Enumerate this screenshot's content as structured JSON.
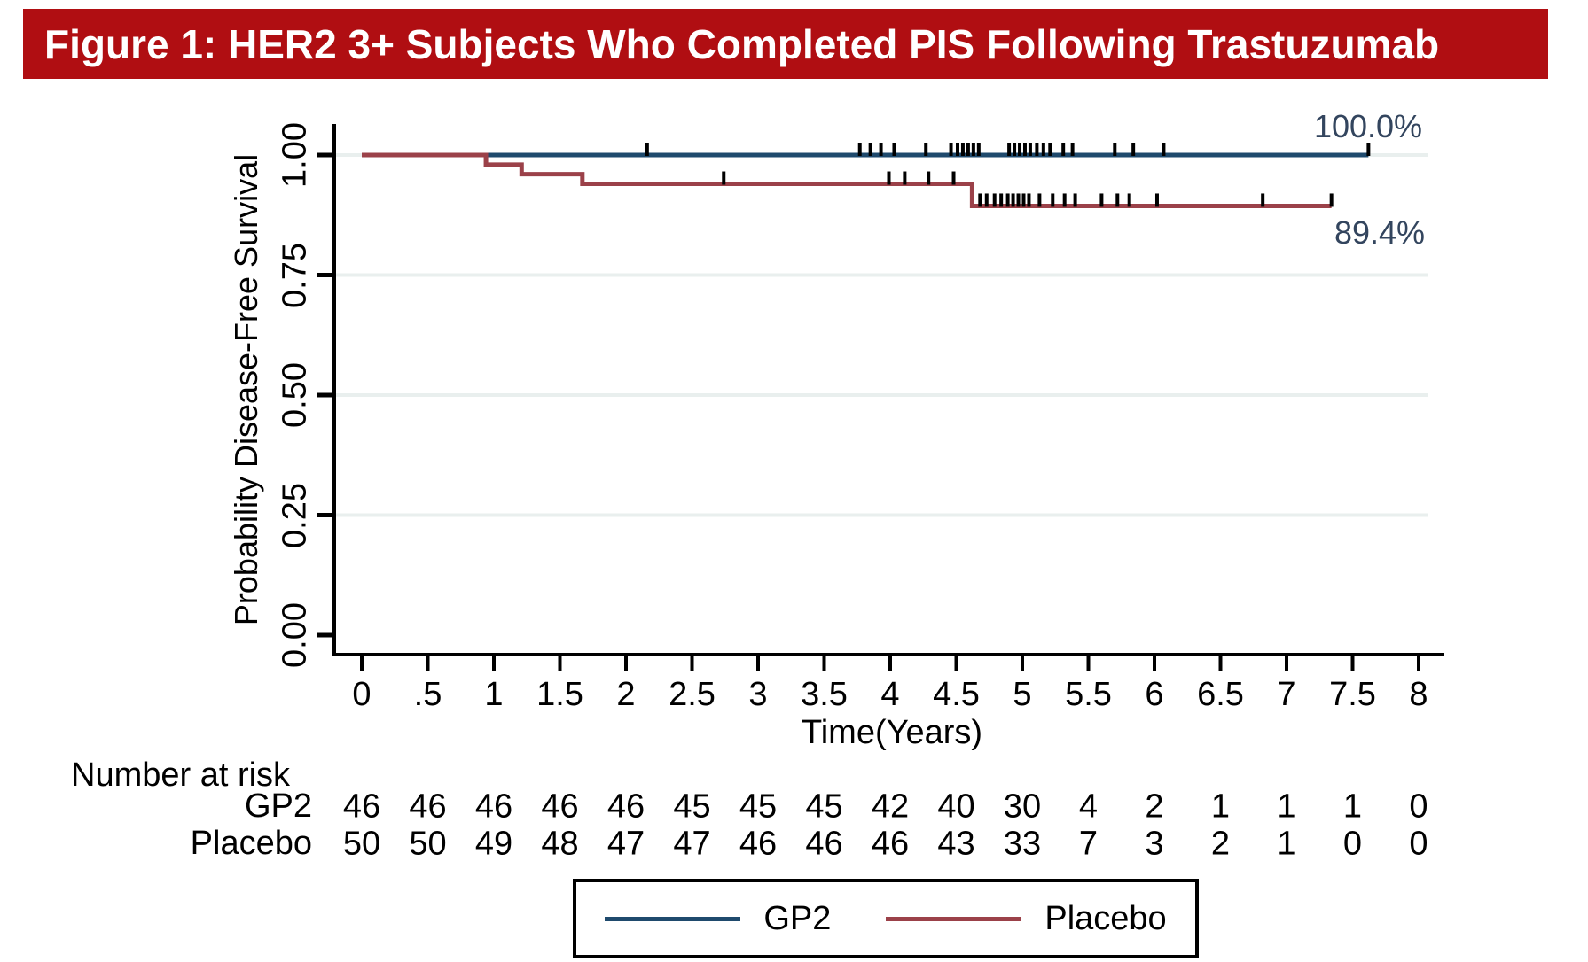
{
  "title_bar": {
    "text": "Figure 1: HER2 3+ Subjects Who Completed PIS Following Trastuzumab",
    "bg_color": "#b00e12",
    "text_color": "#ffffff"
  },
  "chart_data": {
    "type": "line",
    "subtype": "kaplan_meier_step_survival",
    "title": "",
    "xlabel": "Time(Years)",
    "ylabel": "Probability Disease-Free Survival",
    "xlim": [
      0,
      8
    ],
    "ylim": [
      0,
      1
    ],
    "grid": true,
    "grid_values": [
      0.25,
      0.5,
      0.75,
      1.0
    ],
    "grid_color": "#e9efee",
    "axis_color": "#000000",
    "annotation_color": "#33455e",
    "x_ticks": [
      {
        "value": 0,
        "label": "0"
      },
      {
        "value": 0.5,
        "label": ".5"
      },
      {
        "value": 1,
        "label": "1"
      },
      {
        "value": 1.5,
        "label": "1.5"
      },
      {
        "value": 2,
        "label": "2"
      },
      {
        "value": 2.5,
        "label": "2.5"
      },
      {
        "value": 3,
        "label": "3"
      },
      {
        "value": 3.5,
        "label": "3.5"
      },
      {
        "value": 4,
        "label": "4"
      },
      {
        "value": 4.5,
        "label": "4.5"
      },
      {
        "value": 5,
        "label": "5"
      },
      {
        "value": 5.5,
        "label": "5.5"
      },
      {
        "value": 6,
        "label": "6"
      },
      {
        "value": 6.5,
        "label": "6.5"
      },
      {
        "value": 7,
        "label": "7"
      },
      {
        "value": 7.5,
        "label": "7.5"
      },
      {
        "value": 8,
        "label": "8"
      }
    ],
    "y_ticks": [
      {
        "value": 0,
        "label": "0.00"
      },
      {
        "value": 0.25,
        "label": "0.25"
      },
      {
        "value": 0.5,
        "label": "0.50"
      },
      {
        "value": 0.75,
        "label": "0.75"
      },
      {
        "value": 1,
        "label": "1.00"
      }
    ],
    "series": [
      {
        "name": "GP2",
        "color": "#1f4a6d",
        "annotation": "100.0%",
        "final_value": 1.0,
        "points": [
          [
            0,
            1.0
          ],
          [
            7.62,
            1.0
          ]
        ],
        "censor_marks": [
          [
            2.16,
            1.0
          ],
          [
            3.77,
            1.0
          ],
          [
            3.85,
            1.0
          ],
          [
            3.93,
            1.0
          ],
          [
            4.03,
            1.0
          ],
          [
            4.27,
            1.0
          ],
          [
            4.46,
            1.0
          ],
          [
            4.51,
            1.0
          ],
          [
            4.55,
            1.0
          ],
          [
            4.59,
            1.0
          ],
          [
            4.63,
            1.0
          ],
          [
            4.67,
            1.0
          ],
          [
            4.9,
            1.0
          ],
          [
            4.94,
            1.0
          ],
          [
            4.98,
            1.0
          ],
          [
            5.02,
            1.0
          ],
          [
            5.06,
            1.0
          ],
          [
            5.11,
            1.0
          ],
          [
            5.16,
            1.0
          ],
          [
            5.21,
            1.0
          ],
          [
            5.31,
            1.0
          ],
          [
            5.38,
            1.0
          ],
          [
            5.7,
            1.0
          ],
          [
            5.84,
            1.0
          ],
          [
            6.07,
            1.0
          ],
          [
            7.62,
            1.0
          ]
        ]
      },
      {
        "name": "Placebo",
        "color": "#9b4149",
        "annotation": "89.4%",
        "final_value": 0.894,
        "points": [
          [
            0,
            1.0
          ],
          [
            0.94,
            1.0
          ],
          [
            0.94,
            0.98
          ],
          [
            1.21,
            0.98
          ],
          [
            1.21,
            0.96
          ],
          [
            1.67,
            0.96
          ],
          [
            1.67,
            0.94
          ],
          [
            4.62,
            0.94
          ],
          [
            4.62,
            0.894
          ],
          [
            7.34,
            0.894
          ]
        ],
        "censor_marks": [
          [
            2.74,
            0.94
          ],
          [
            3.99,
            0.94
          ],
          [
            4.11,
            0.94
          ],
          [
            4.29,
            0.94
          ],
          [
            4.48,
            0.94
          ],
          [
            4.68,
            0.894
          ],
          [
            4.73,
            0.894
          ],
          [
            4.79,
            0.894
          ],
          [
            4.84,
            0.894
          ],
          [
            4.89,
            0.894
          ],
          [
            4.93,
            0.894
          ],
          [
            4.97,
            0.894
          ],
          [
            5.01,
            0.894
          ],
          [
            5.05,
            0.894
          ],
          [
            5.13,
            0.894
          ],
          [
            5.23,
            0.894
          ],
          [
            5.32,
            0.894
          ],
          [
            5.4,
            0.894
          ],
          [
            5.6,
            0.894
          ],
          [
            5.72,
            0.894
          ],
          [
            5.81,
            0.894
          ],
          [
            6.02,
            0.894
          ],
          [
            6.82,
            0.894
          ],
          [
            7.34,
            0.894
          ]
        ]
      }
    ],
    "risk_table": {
      "header": "Number at risk",
      "time_values": [
        0,
        0.5,
        1,
        1.5,
        2,
        2.5,
        3,
        3.5,
        4,
        4.5,
        5,
        5.5,
        6,
        6.5,
        7,
        7.5,
        8
      ],
      "rows": [
        {
          "name": "GP2",
          "values": [
            "46",
            "46",
            "46",
            "46",
            "46",
            "45",
            "45",
            "45",
            "42",
            "40",
            "30",
            "4",
            "2",
            "1",
            "1",
            "1",
            "0"
          ]
        },
        {
          "name": "Placebo",
          "values": [
            "50",
            "50",
            "49",
            "48",
            "47",
            "47",
            "46",
            "46",
            "46",
            "43",
            "33",
            "7",
            "3",
            "2",
            "1",
            "0",
            "0"
          ]
        }
      ]
    },
    "legend": {
      "position": "bottom-center",
      "entries": [
        {
          "label": "GP2",
          "color": "#1f4a6d"
        },
        {
          "label": "Placebo",
          "color": "#9b4149"
        }
      ]
    }
  }
}
